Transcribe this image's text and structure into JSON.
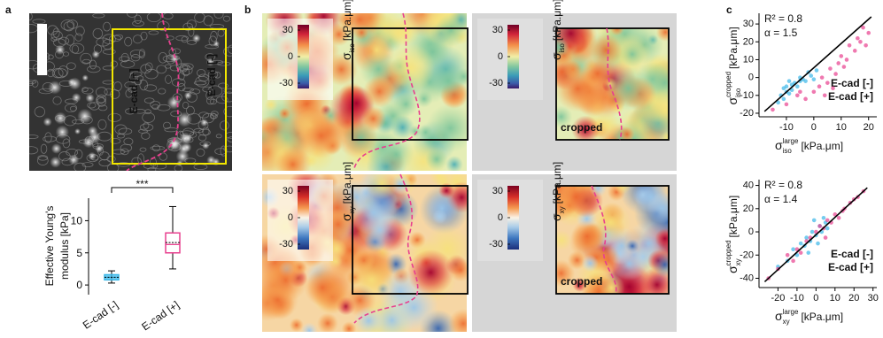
{
  "panel_labels": [
    "a",
    "b",
    "c"
  ],
  "micrograph": {
    "labels": [
      {
        "text": "E-cad [+]",
        "color": "#e8408f"
      },
      {
        "text": "E-cad [-]",
        "color": "#3ab7e8"
      }
    ]
  },
  "stress_maps": [
    {
      "symbol": "σ",
      "subscript": "iso",
      "unit": "[kPa.μm]",
      "clim": [
        -36,
        36
      ],
      "ticks": [
        30,
        0,
        -30
      ]
    },
    {
      "symbol": "σ",
      "subscript": "iso",
      "unit": "[kPa.μm]",
      "clim": [
        -36,
        36
      ],
      "ticks": [
        30,
        0,
        -30
      ],
      "annotation": "cropped"
    },
    {
      "symbol": "σ",
      "subscript": "xy",
      "unit": "[kPa.μm]",
      "clim": [
        -36,
        36
      ],
      "ticks": [
        30,
        0,
        -30
      ]
    },
    {
      "symbol": "σ",
      "subscript": "xy",
      "unit": "[kPa.μm]",
      "clim": [
        -36,
        36
      ],
      "ticks": [
        30,
        0,
        -30
      ],
      "annotation": "cropped"
    }
  ],
  "chart_data": [
    {
      "type": "box",
      "ylabel": [
        "Effective Young's",
        "modulus [kPa]"
      ],
      "categories": [
        "E-cad [-]",
        "E-cad [+]"
      ],
      "colors": [
        "#3ab7e8",
        "#e8408f"
      ],
      "whisker_low": [
        0.3,
        2.5
      ],
      "q1": [
        0.8,
        5.0
      ],
      "median": [
        1.2,
        6.3
      ],
      "mean": [
        1.2,
        6.6
      ],
      "q3": [
        1.6,
        8.1
      ],
      "whisker_high": [
        2.2,
        12.2
      ],
      "ylim": [
        -1.5,
        13.5
      ],
      "yticks": [
        0,
        5,
        10
      ],
      "significance": "***"
    },
    {
      "type": "scatter",
      "annotations": [
        "R² = 0.8",
        "α = 1.5"
      ],
      "xlabel": {
        "symbol": "σ",
        "sub": "iso",
        "sup": "large",
        "unit": "[kPa.μm]"
      },
      "ylabel": {
        "symbol": "σ",
        "sub": "iso",
        "sup": "cropped",
        "unit": "[kPa.μm]"
      },
      "xlim": [
        -20,
        23
      ],
      "xticks": [
        -10,
        0,
        10,
        20
      ],
      "ylim": [
        -22,
        36
      ],
      "yticks": [
        -20,
        -10,
        0,
        10,
        20,
        30
      ],
      "series": [
        {
          "name": "E-cad [-]",
          "color": "#3ab7e8",
          "x": [
            -13,
            -12,
            -11,
            -10,
            -10,
            -9,
            -8,
            -8,
            -7,
            -6,
            -5,
            -5,
            -4,
            -3,
            -2,
            -1,
            0,
            1,
            -11,
            -9
          ],
          "values": [
            -14,
            -10,
            -12,
            -8,
            -5,
            -9,
            -4,
            -7,
            -3,
            -5,
            -2,
            0,
            -1,
            -2,
            3,
            1,
            -1,
            4,
            -6,
            -2
          ]
        },
        {
          "name": "E-cad [+]",
          "color": "#e8408f",
          "x": [
            -15,
            -10,
            -6,
            -3,
            0,
            2,
            3,
            5,
            6,
            8,
            9,
            10,
            11,
            12,
            13,
            15,
            16,
            17,
            18,
            19,
            20,
            -5,
            4,
            7
          ],
          "values": [
            -18,
            -15,
            -10,
            -12,
            -8,
            -5,
            0,
            -3,
            5,
            2,
            8,
            12,
            6,
            10,
            18,
            15,
            22,
            20,
            28,
            18,
            25,
            -8,
            -10,
            -6
          ]
        }
      ],
      "fit": {
        "x": [
          -18,
          21
        ],
        "y": [
          -19,
          34
        ]
      }
    },
    {
      "type": "scatter",
      "annotations": [
        "R² = 0.8",
        "α = 1.4"
      ],
      "xlabel": {
        "symbol": "σ",
        "sub": "xy",
        "sup": "large",
        "unit": "[kPa.μm]"
      },
      "ylabel": {
        "symbol": "σ",
        "sub": "xy",
        "sup": "cropped",
        "unit": "[kPa.μm]"
      },
      "xlim": [
        -30,
        32
      ],
      "xticks": [
        -20,
        -10,
        0,
        10,
        20,
        30
      ],
      "ylim": [
        -48,
        45
      ],
      "yticks": [
        -40,
        -20,
        0,
        20,
        40
      ],
      "series": [
        {
          "name": "E-cad [-]",
          "color": "#3ab7e8",
          "x": [
            -20,
            -15,
            -12,
            -10,
            -8,
            -6,
            -5,
            -3,
            -2,
            0,
            2,
            3,
            5,
            6,
            -4,
            -1,
            1,
            4
          ],
          "values": [
            -30,
            -25,
            -15,
            -20,
            -10,
            -12,
            -5,
            -8,
            0,
            -3,
            5,
            0,
            8,
            3,
            -18,
            10,
            -10,
            12
          ]
        },
        {
          "name": "E-cad [+]",
          "color": "#e8408f",
          "x": [
            -25,
            -20,
            -15,
            -10,
            -8,
            -5,
            -3,
            0,
            2,
            4,
            6,
            8,
            10,
            12,
            15,
            18,
            20,
            22,
            25,
            -12,
            5,
            14
          ],
          "values": [
            -40,
            -32,
            -20,
            -15,
            -18,
            -8,
            -5,
            0,
            5,
            3,
            10,
            8,
            15,
            12,
            20,
            25,
            28,
            30,
            35,
            -25,
            -5,
            18
          ]
        }
      ],
      "fit": {
        "x": [
          -27,
          27
        ],
        "y": [
          -43,
          38
        ]
      }
    }
  ]
}
